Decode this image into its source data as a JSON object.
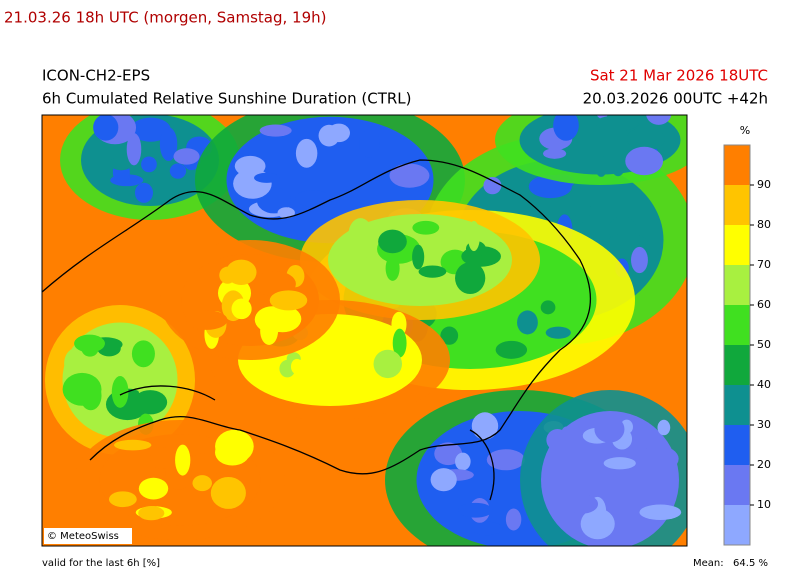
{
  "header": "21.03.26 18h UTC (morgen, Samstag, 19h)",
  "map": {
    "model": "ICON-CH2-EPS",
    "product": "6h Cumulated Relative Sunshine Duration (CTRL)",
    "valid": "Sat 21 Mar 2026 18UTC",
    "run": "20.03.2026 00UTC +42h",
    "credit": "© MeteoSwiss"
  },
  "legend": {
    "unit": "%",
    "range": [
      0,
      100
    ],
    "ticks": [
      10,
      20,
      30,
      40,
      50,
      60,
      70,
      80,
      90
    ],
    "colors": [
      "#8ea8ff",
      "#6a78f2",
      "#1f5ef0",
      "#0e9090",
      "#10a83c",
      "#40e020",
      "#a8f040",
      "#ffff00",
      "#ffc400",
      "#ff7f00"
    ]
  },
  "footer": {
    "note": "valid for the last 6h [%]",
    "mean_label": "Mean:",
    "mean": "64.5 %"
  }
}
